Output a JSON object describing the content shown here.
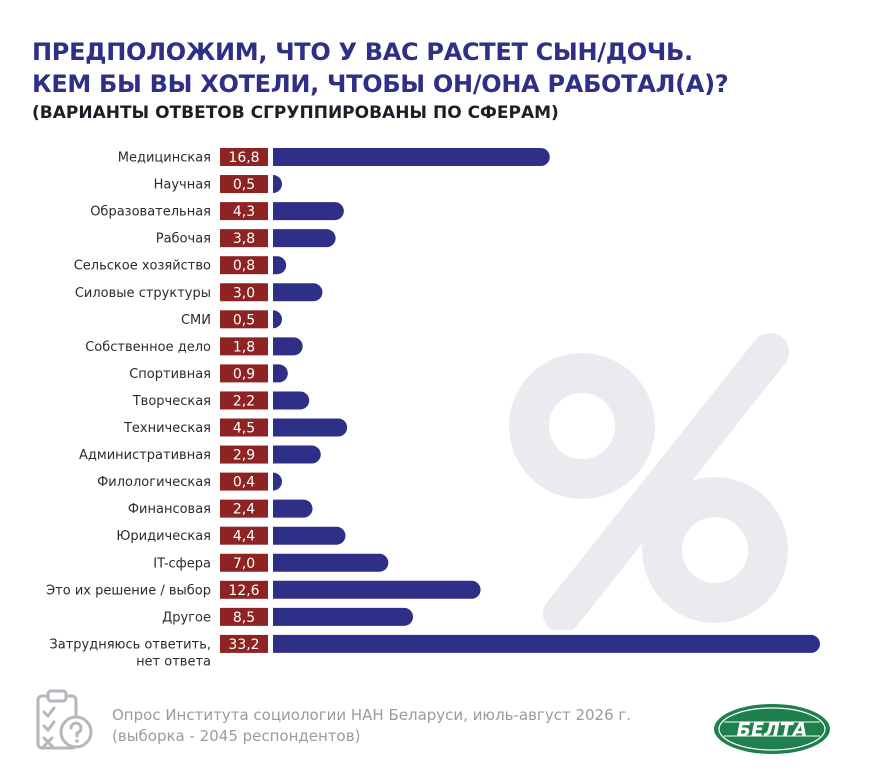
{
  "header": {
    "title_line1": "ПРЕДПОЛОЖИМ, ЧТО У ВАС РАСТЕТ СЫН/ДОЧЬ.",
    "title_line2": "КЕМ БЫ ВЫ ХОТЕЛИ, ЧТОБЫ ОН/ОНА РАБОТАЛ(А)?",
    "subtitle": "(ВАРИАНТЫ ОТВЕТОВ СГРУППИРОВАНЫ ПО СФЕРАМ)"
  },
  "footer": {
    "source_line1": "Опрос Института социологии НАН Беларуси, июль-август 2026 г.",
    "source_line2": "(выборка - 2045 респондентов)",
    "logo_text": "БЕЛТА",
    "icon": "clipboard-question-icon"
  },
  "decor": {
    "watermark_icon": "percent-icon"
  },
  "colors": {
    "bar": "#2e2f86",
    "value_box": "#8e2323",
    "value_text": "#ffffff",
    "title": "#2e2f86",
    "watermark": "#ebebef",
    "logo": "#1f7f4d"
  },
  "chart_data": {
    "type": "bar",
    "orientation": "horizontal",
    "title": "ПРЕДПОЛОЖИМ, ЧТО У ВАС РАСТЕТ СЫН/ДОЧЬ. КЕМ БЫ ВЫ ХОТЕЛИ, ЧТОБЫ ОН/ОНА РАБОТАЛ(А)?",
    "subtitle": "(ВАРИАНТЫ ОТВЕТОВ СГРУППИРОВАНЫ ПО СФЕРАМ)",
    "categories": [
      "Медицинская",
      "Научная",
      "Образовательная",
      "Рабочая",
      "Сельское хозяйство",
      "Силовые структуры",
      "СМИ",
      "Собственное дело",
      "Спортивная",
      "Творческая",
      "Техническая",
      "Административная",
      "Филологическая",
      "Финансовая",
      "Юридическая",
      "IT-сфера",
      "Это их решение / выбор",
      "Другое",
      "Затрудняюсь ответить,\nнет ответа"
    ],
    "values": [
      16.8,
      0.5,
      4.3,
      3.8,
      0.8,
      3.0,
      0.5,
      1.8,
      0.9,
      2.2,
      4.5,
      2.9,
      0.4,
      2.4,
      4.4,
      7.0,
      12.6,
      8.5,
      33.2
    ],
    "value_labels": [
      "16,8",
      "0,5",
      "4,3",
      "3,8",
      "0,8",
      "3,0",
      "0,5",
      "1,8",
      "0,9",
      "2,2",
      "4,5",
      "2,9",
      "0,4",
      "2,4",
      "4,4",
      "7,0",
      "12,6",
      "8,5",
      "33,2"
    ],
    "xlim": [
      0,
      33.2
    ],
    "grid": false,
    "legend": "none"
  }
}
